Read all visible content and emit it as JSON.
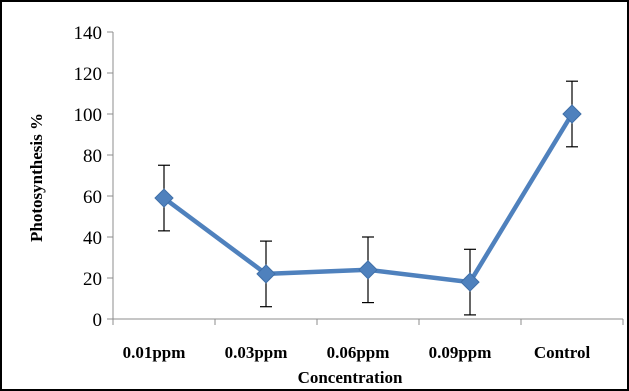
{
  "chart_data": {
    "type": "line",
    "categories": [
      "0.01ppm",
      "0.03ppm",
      "0.06ppm",
      "0.09ppm",
      "Control"
    ],
    "series": [
      {
        "values": [
          59,
          22,
          24,
          18,
          100
        ],
        "error": [
          16,
          16,
          16,
          16,
          16
        ],
        "color": "#4f81bd"
      }
    ],
    "xlabel": "Concentration",
    "ylabel": "Photosynthesis %",
    "ylim": [
      0,
      140
    ],
    "yticks": [
      "0",
      "20",
      "40",
      "60",
      "80",
      "100",
      "120",
      "140"
    ],
    "grid": false,
    "marker": "diamond"
  }
}
